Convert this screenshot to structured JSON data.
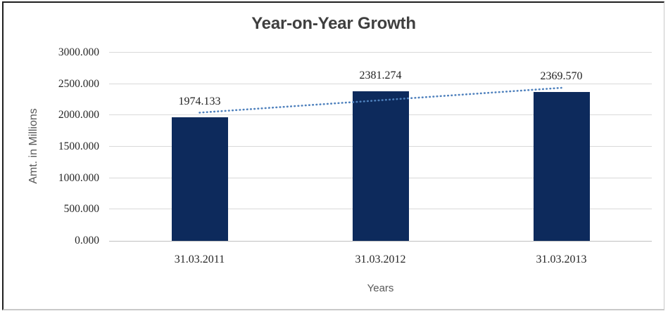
{
  "chart_data": {
    "type": "bar",
    "title": "Year-on-Year Growth",
    "xlabel": "Years",
    "ylabel": "Amt. in Millions",
    "categories": [
      "31.03.2011",
      "31.03.2012",
      "31.03.2013"
    ],
    "series": [
      {
        "name": "Amt. in Millions",
        "values": [
          1974.133,
          2381.274,
          2369.57
        ]
      }
    ],
    "data_labels": [
      "1974.133",
      "2381.274",
      "2369.570"
    ],
    "yticks": [
      "3000.000",
      "2500.000",
      "2000.000",
      "1500.000",
      "1000.000",
      "500.000",
      "0.000"
    ],
    "ylim": [
      0,
      3000
    ],
    "ytick_step": 500,
    "grid": true,
    "legend": false,
    "bar_color": "#0d2a5c",
    "gridline_color": "#d9d9d9",
    "axis_line_color": "#bfbfbf",
    "trendline": {
      "type": "linear",
      "style": "dotted",
      "color": "#4f81bd"
    }
  }
}
